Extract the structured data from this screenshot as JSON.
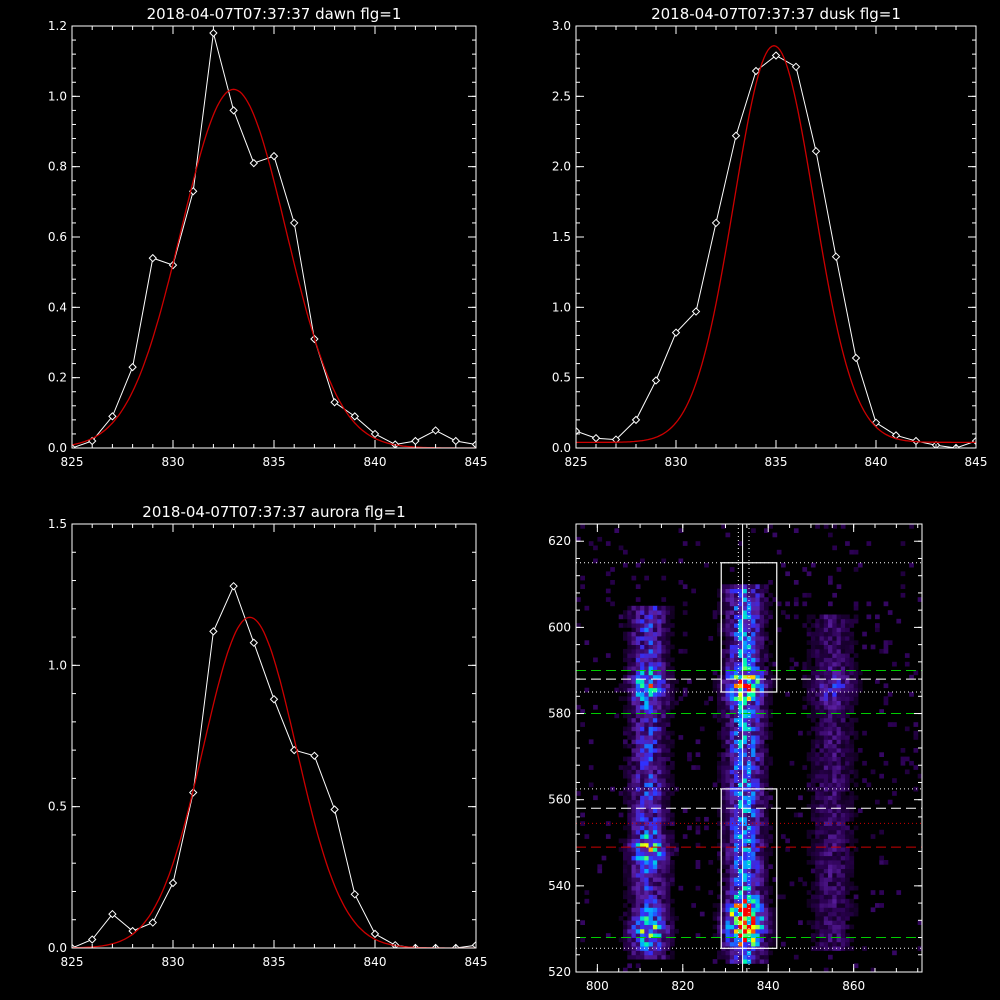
{
  "chart_data": [
    {
      "id": "dawn",
      "type": "line",
      "title": "2018-04-07T07:37:37 dawn flg=1",
      "xlim": [
        825,
        845
      ],
      "ylim": [
        0,
        1.2
      ],
      "xticks": [
        825,
        830,
        835,
        840,
        845
      ],
      "yticks": [
        0.0,
        0.2,
        0.4,
        0.6,
        0.8,
        1.0,
        1.2
      ],
      "xticklabels": [
        "825",
        "830",
        "835",
        "840",
        "845"
      ],
      "yticklabels": [
        "0.0",
        "0.2",
        "0.4",
        "0.6",
        "0.8",
        "1.0",
        "1.2"
      ],
      "series": [
        {
          "kind": "data",
          "color": "#ffffff",
          "x": [
            825,
            826,
            827,
            828,
            829,
            830,
            831,
            832,
            833,
            834,
            835,
            836,
            837,
            838,
            839,
            840,
            841,
            842,
            843,
            844,
            845
          ],
          "y": [
            0.0,
            0.02,
            0.09,
            0.23,
            0.54,
            0.52,
            0.73,
            1.18,
            0.96,
            0.81,
            0.83,
            0.64,
            0.31,
            0.13,
            0.09,
            0.04,
            0.01,
            0.02,
            0.05,
            0.02,
            0.01
          ]
        },
        {
          "kind": "gaussian-fit",
          "color": "#cc0000",
          "amplitude": 1.02,
          "center": 833.0,
          "sigma": 2.6,
          "offset": 0.0
        }
      ]
    },
    {
      "id": "dusk",
      "type": "line",
      "title": "2018-04-07T07:37:37 dusk flg=1",
      "xlim": [
        825,
        845
      ],
      "ylim": [
        0,
        3.0
      ],
      "xticks": [
        825,
        830,
        835,
        840,
        845
      ],
      "yticks": [
        0.0,
        0.5,
        1.0,
        1.5,
        2.0,
        2.5,
        3.0
      ],
      "xticklabels": [
        "825",
        "830",
        "835",
        "840",
        "845"
      ],
      "yticklabels": [
        "0.0",
        "0.5",
        "1.0",
        "1.5",
        "2.0",
        "2.5",
        "3.0"
      ],
      "series": [
        {
          "kind": "data",
          "color": "#ffffff",
          "x": [
            825,
            826,
            827,
            828,
            829,
            830,
            831,
            832,
            833,
            834,
            835,
            836,
            837,
            838,
            839,
            840,
            841,
            842,
            843,
            844,
            845
          ],
          "y": [
            0.12,
            0.07,
            0.06,
            0.2,
            0.48,
            0.82,
            0.97,
            1.6,
            2.22,
            2.68,
            2.79,
            2.71,
            2.11,
            1.36,
            0.64,
            0.18,
            0.09,
            0.05,
            0.02,
            0.0,
            0.05
          ]
        },
        {
          "kind": "gaussian-fit",
          "color": "#cc0000",
          "amplitude": 2.82,
          "center": 834.9,
          "sigma": 2.0,
          "offset": 0.04
        }
      ]
    },
    {
      "id": "aurora",
      "type": "line",
      "title": "2018-04-07T07:37:37 aurora flg=1",
      "xlim": [
        825,
        845
      ],
      "ylim": [
        0,
        1.5
      ],
      "xticks": [
        825,
        830,
        835,
        840,
        845
      ],
      "yticks": [
        0.0,
        0.5,
        1.0,
        1.5
      ],
      "xticklabels": [
        "825",
        "830",
        "835",
        "840",
        "845"
      ],
      "yticklabels": [
        "0.0",
        "0.5",
        "1.0",
        "1.5"
      ],
      "series": [
        {
          "kind": "data",
          "color": "#ffffff",
          "x": [
            825,
            826,
            827,
            828,
            829,
            830,
            831,
            832,
            833,
            834,
            835,
            836,
            837,
            838,
            839,
            840,
            841,
            842,
            843,
            844,
            845
          ],
          "y": [
            0.0,
            0.03,
            0.12,
            0.06,
            0.09,
            0.23,
            0.55,
            1.12,
            1.28,
            1.08,
            0.88,
            0.7,
            0.68,
            0.49,
            0.19,
            0.05,
            0.01,
            0.0,
            0.0,
            0.0,
            0.01
          ]
        },
        {
          "kind": "gaussian-fit",
          "color": "#cc0000",
          "amplitude": 1.17,
          "center": 833.8,
          "sigma": 2.3,
          "offset": 0.0
        }
      ]
    },
    {
      "id": "image",
      "type": "heatmap",
      "title": "",
      "xlim": [
        795,
        876
      ],
      "ylim": [
        520,
        624
      ],
      "xticks": [
        800,
        820,
        840,
        860
      ],
      "yticks": [
        520,
        540,
        560,
        580,
        600,
        620
      ],
      "xticklabels": [
        "800",
        "820",
        "840",
        "860"
      ],
      "yticklabels": [
        "520",
        "540",
        "560",
        "580",
        "600",
        "620"
      ],
      "colormap": [
        "#000000",
        "#2a0050",
        "#5a1ea0",
        "#3030ff",
        "#00b4ff",
        "#00ffa0",
        "#ffff00",
        "#ff0000"
      ],
      "bands": [
        {
          "x": 812,
          "width": 3,
          "y": [
            523,
            604
          ],
          "intensity": 0.42,
          "hot": [
            586,
            529,
            548
          ]
        },
        {
          "x": 834.5,
          "width": 3,
          "y": [
            522,
            609
          ],
          "intensity": 0.55,
          "hot": [
            586,
            529,
            533
          ]
        },
        {
          "x": 855,
          "width": 3.5,
          "y": [
            525,
            602
          ],
          "intensity": 0.22,
          "hot": [
            586
          ]
        }
      ],
      "boxes": [
        {
          "x": [
            829,
            842
          ],
          "y": [
            585,
            615
          ],
          "color": "#ffffff"
        },
        {
          "x": [
            829,
            842
          ],
          "y": [
            525.5,
            562.5
          ],
          "color": "#ffffff"
        }
      ],
      "hlines": [
        {
          "y": 615,
          "color": "#ffffff",
          "style": "dotted"
        },
        {
          "y": 590,
          "color": "#00cc00",
          "style": "dashed"
        },
        {
          "y": 588,
          "color": "#ffffff",
          "style": "dashed"
        },
        {
          "y": 585,
          "color": "#ffffff",
          "style": "dotted"
        },
        {
          "y": 580,
          "color": "#00cc00",
          "style": "dashed"
        },
        {
          "y": 562.5,
          "color": "#ffffff",
          "style": "dotted"
        },
        {
          "y": 558,
          "color": "#ffffff",
          "style": "dashed"
        },
        {
          "y": 554.5,
          "color": "#cc0000",
          "style": "dotted"
        },
        {
          "y": 549,
          "color": "#cc0000",
          "style": "dashed"
        },
        {
          "y": 528,
          "color": "#00cc00",
          "style": "dashed"
        },
        {
          "y": 525.5,
          "color": "#ffffff",
          "style": "dotted"
        }
      ],
      "vlines": [
        {
          "x": 833,
          "color": "#ffffff",
          "style": "dotted"
        },
        {
          "x": 834,
          "color": "#ffffff",
          "style": "solid"
        },
        {
          "x": 835.5,
          "color": "#ffffff",
          "style": "dotted"
        }
      ]
    }
  ]
}
